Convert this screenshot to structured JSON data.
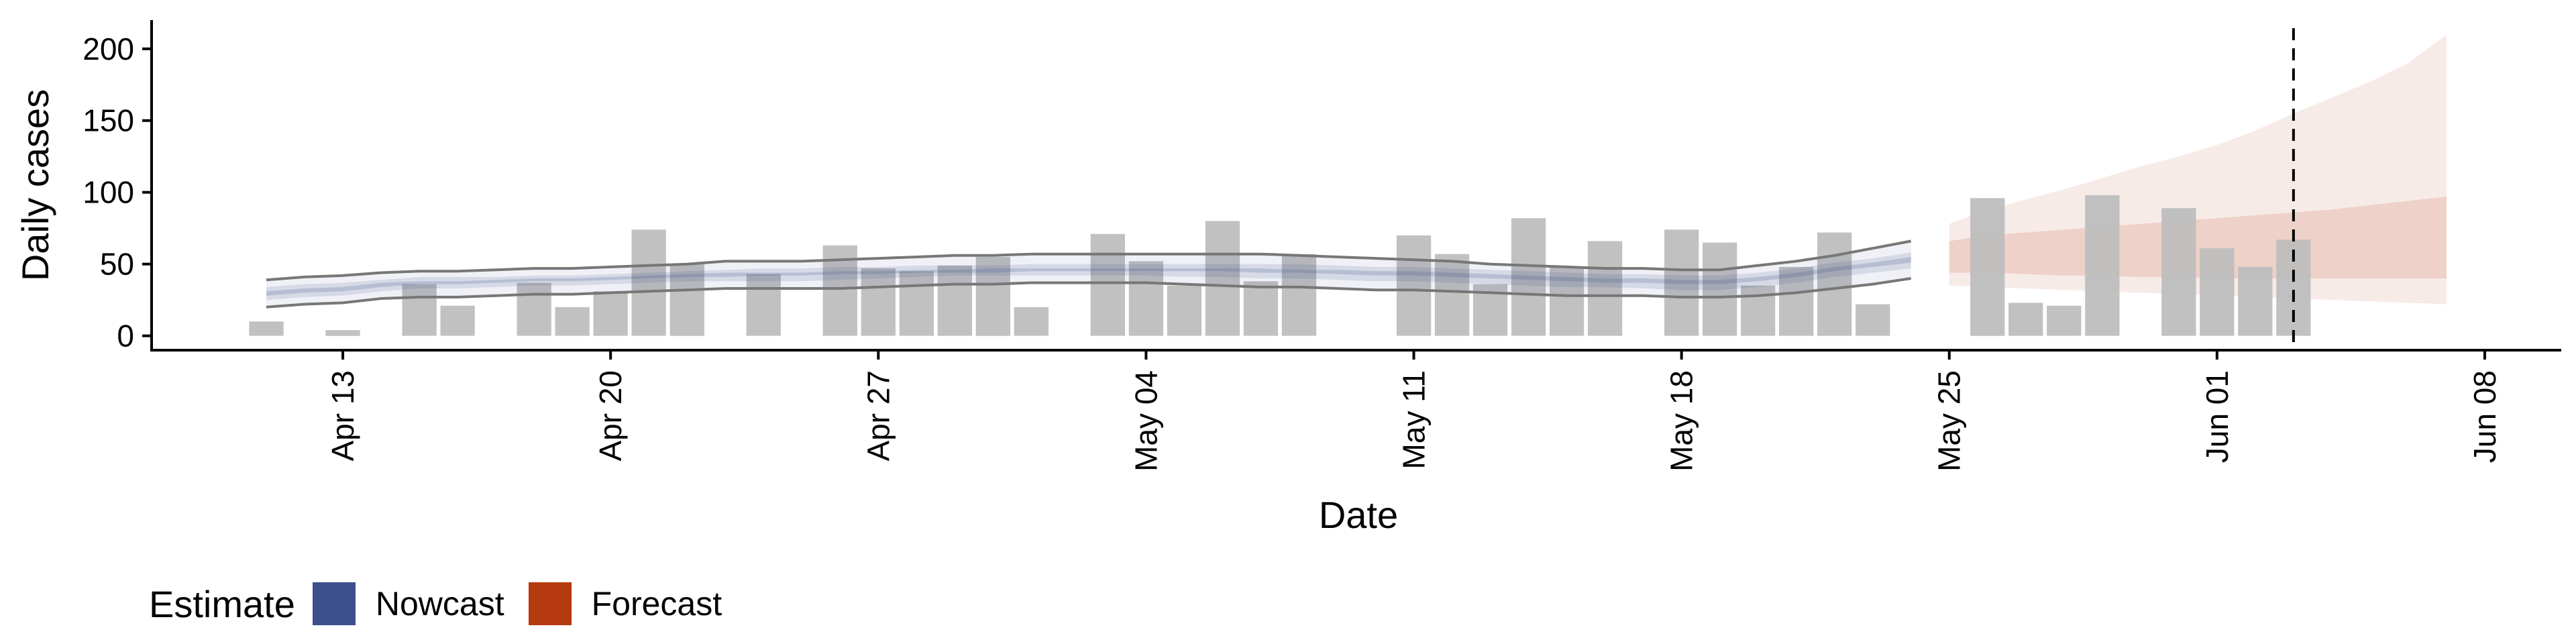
{
  "chart_data": {
    "type": "bar",
    "xlabel": "Date",
    "ylabel": "Daily cases",
    "ylim": [
      -10,
      220
    ],
    "yticks": [
      0,
      50,
      100,
      150,
      200
    ],
    "xlim": [
      "2020-04-08",
      "2020-06-10"
    ],
    "xticks": [
      "2020-04-13",
      "2020-04-20",
      "2020-04-27",
      "2020-05-04",
      "2020-05-11",
      "2020-05-18",
      "2020-05-25",
      "2020-06-01",
      "2020-06-08"
    ],
    "xtick_labels": [
      "Apr 13",
      "Apr 20",
      "Apr 27",
      "May 04",
      "May 11",
      "May 18",
      "May 25",
      "Jun 01",
      "Jun 08"
    ],
    "grid": false,
    "reference_line_date": "2020-06-03",
    "colors": {
      "bars": "#bebebe",
      "nowcast": "#3b4f8c",
      "forecast": "#b53a0f",
      "interval_outline": "#777777"
    },
    "observed": {
      "dates": [
        "2020-04-11",
        "2020-04-12",
        "2020-04-13",
        "2020-04-14",
        "2020-04-15",
        "2020-04-16",
        "2020-04-17",
        "2020-04-18",
        "2020-04-19",
        "2020-04-20",
        "2020-04-21",
        "2020-04-22",
        "2020-04-23",
        "2020-04-24",
        "2020-04-25",
        "2020-04-26",
        "2020-04-27",
        "2020-04-28",
        "2020-04-29",
        "2020-04-30",
        "2020-05-01",
        "2020-05-02",
        "2020-05-03",
        "2020-05-04",
        "2020-05-05",
        "2020-05-06",
        "2020-05-07",
        "2020-05-08",
        "2020-05-09",
        "2020-05-10",
        "2020-05-11",
        "2020-05-12",
        "2020-05-13",
        "2020-05-14",
        "2020-05-15",
        "2020-05-16",
        "2020-05-17",
        "2020-05-18",
        "2020-05-19",
        "2020-05-20",
        "2020-05-21",
        "2020-05-22",
        "2020-05-23",
        "2020-05-24",
        "2020-05-25",
        "2020-05-26",
        "2020-05-27",
        "2020-05-28",
        "2020-05-29",
        "2020-05-30",
        "2020-05-31",
        "2020-06-01",
        "2020-06-02",
        "2020-06-03"
      ],
      "values": [
        10,
        0,
        4,
        0,
        36,
        21,
        0,
        37,
        20,
        31,
        74,
        50,
        0,
        43,
        0,
        63,
        47,
        45,
        49,
        55,
        20,
        0,
        71,
        52,
        35,
        80,
        38,
        57,
        0,
        0,
        70,
        57,
        36,
        82,
        48,
        66,
        0,
        74,
        65,
        35,
        48,
        72,
        22,
        0,
        0,
        96,
        23,
        21,
        98,
        0,
        89,
        61,
        48,
        67
      ]
    },
    "estimate": {
      "dates": [
        "2020-04-11",
        "2020-04-12",
        "2020-04-13",
        "2020-04-14",
        "2020-04-15",
        "2020-04-16",
        "2020-04-17",
        "2020-04-18",
        "2020-04-19",
        "2020-04-20",
        "2020-04-21",
        "2020-04-22",
        "2020-04-23",
        "2020-04-24",
        "2020-04-25",
        "2020-04-26",
        "2020-04-27",
        "2020-04-28",
        "2020-04-29",
        "2020-04-30",
        "2020-05-01",
        "2020-05-02",
        "2020-05-03",
        "2020-05-04",
        "2020-05-05",
        "2020-05-06",
        "2020-05-07",
        "2020-05-08",
        "2020-05-09",
        "2020-05-10",
        "2020-05-11",
        "2020-05-12",
        "2020-05-13",
        "2020-05-14",
        "2020-05-15",
        "2020-05-16",
        "2020-05-17",
        "2020-05-18",
        "2020-05-19",
        "2020-05-20",
        "2020-05-21",
        "2020-05-22",
        "2020-05-23",
        "2020-05-24"
      ],
      "lower90": [
        20,
        22,
        23,
        26,
        27,
        27,
        28,
        29,
        29,
        30,
        31,
        32,
        33,
        33,
        33,
        33,
        34,
        35,
        36,
        36,
        37,
        37,
        37,
        37,
        36,
        35,
        34,
        34,
        33,
        32,
        32,
        31,
        30,
        29,
        28,
        28,
        28,
        27,
        27,
        28,
        30,
        33,
        36,
        40
      ],
      "upper90": [
        39,
        41,
        42,
        44,
        45,
        45,
        46,
        47,
        47,
        48,
        49,
        50,
        52,
        52,
        52,
        53,
        54,
        55,
        56,
        56,
        57,
        57,
        57,
        57,
        57,
        57,
        57,
        56,
        55,
        54,
        53,
        52,
        50,
        49,
        48,
        47,
        47,
        46,
        46,
        49,
        52,
        56,
        61,
        66
      ],
      "lower50": [
        25,
        27,
        28,
        31,
        33,
        33,
        34,
        35,
        35,
        36,
        37,
        38,
        38,
        38,
        38,
        39,
        40,
        41,
        42,
        42,
        42,
        42,
        42,
        42,
        41,
        41,
        40,
        40,
        39,
        38,
        38,
        37,
        36,
        35,
        34,
        34,
        33,
        32,
        32,
        34,
        37,
        41,
        44,
        47
      ],
      "upper50": [
        34,
        36,
        37,
        39,
        41,
        41,
        41,
        42,
        42,
        43,
        44,
        45,
        46,
        47,
        47,
        48,
        48,
        49,
        49,
        49,
        50,
        50,
        50,
        50,
        50,
        50,
        50,
        50,
        49,
        48,
        48,
        47,
        46,
        45,
        44,
        43,
        43,
        42,
        42,
        44,
        47,
        51,
        54,
        58
      ],
      "lower20": [
        28,
        30,
        31,
        34,
        36,
        36,
        37,
        38,
        38,
        39,
        40,
        41,
        41,
        42,
        42,
        43,
        43,
        44,
        44,
        44,
        45,
        45,
        45,
        45,
        45,
        45,
        44,
        44,
        43,
        42,
        42,
        41,
        40,
        39,
        38,
        37,
        37,
        36,
        36,
        38,
        41,
        45,
        48,
        51
      ],
      "upper20": [
        31,
        33,
        34,
        37,
        38,
        38,
        39,
        40,
        40,
        41,
        42,
        43,
        44,
        44,
        44,
        45,
        45,
        46,
        46,
        47,
        47,
        47,
        47,
        47,
        47,
        47,
        47,
        46,
        46,
        45,
        45,
        44,
        43,
        42,
        41,
        40,
        40,
        39,
        39,
        41,
        44,
        48,
        51,
        55
      ]
    },
    "forecast": {
      "dates": [
        "2020-05-25",
        "2020-05-26",
        "2020-05-27",
        "2020-05-28",
        "2020-05-29",
        "2020-05-30",
        "2020-05-31",
        "2020-06-01",
        "2020-06-02",
        "2020-06-03",
        "2020-06-04",
        "2020-06-05",
        "2020-06-06",
        "2020-06-07"
      ],
      "lower90": [
        35,
        34,
        33,
        32,
        31,
        30,
        29,
        28,
        27,
        26,
        25,
        24,
        23,
        22
      ],
      "upper90": [
        78,
        88,
        95,
        102,
        110,
        118,
        125,
        133,
        143,
        155,
        166,
        177,
        190,
        210
      ],
      "lower50": [
        44,
        44,
        43,
        42,
        42,
        41,
        41,
        40,
        40,
        40,
        40,
        40,
        40,
        40
      ],
      "upper50": [
        66,
        70,
        72,
        74,
        76,
        78,
        80,
        82,
        84,
        86,
        88,
        91,
        94,
        97
      ]
    },
    "legend": {
      "title": "Estimate",
      "items": [
        {
          "label": "Nowcast",
          "color": "#3b4f8c"
        },
        {
          "label": "Forecast",
          "color": "#b53a0f"
        }
      ]
    }
  }
}
